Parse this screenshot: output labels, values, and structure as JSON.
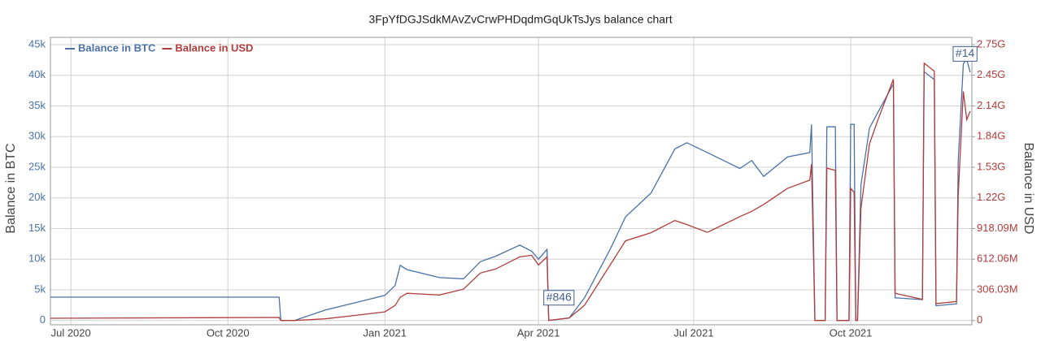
{
  "chart_data": {
    "type": "line",
    "title": "3FpYfDGJSdkMAvZvCrwPHDqdmGqUkTsJys balance chart",
    "ylabel": "Balance in BTC",
    "y2label": "Balance in USD",
    "grid": true,
    "legend": "upper left",
    "x": [
      "2020-06-19",
      "2020-10-31",
      "2020-11-01",
      "2020-11-09",
      "2020-11-27",
      "2020-12-16",
      "2021-01-01",
      "2021-01-07",
      "2021-01-10",
      "2021-01-14",
      "2021-02-02",
      "2021-02-16",
      "2021-02-26",
      "2021-03-07",
      "2021-03-21",
      "2021-03-28",
      "2021-04-01",
      "2021-04-06",
      "2021-04-07",
      "2021-04-19",
      "2021-04-28",
      "2021-05-13",
      "2021-05-22",
      "2021-06-06",
      "2021-06-20",
      "2021-06-27",
      "2021-07-09",
      "2021-07-28",
      "2021-08-04",
      "2021-08-11",
      "2021-08-25",
      "2021-09-07",
      "2021-09-08",
      "2021-09-10",
      "2021-09-16",
      "2021-09-17",
      "2021-09-22",
      "2021-09-23",
      "2021-09-30",
      "2021-10-01",
      "2021-10-03",
      "2021-10-04",
      "2021-10-05",
      "2021-10-07",
      "2021-10-12",
      "2021-10-17",
      "2021-10-26",
      "2021-10-27",
      "2021-11-12",
      "2021-11-13",
      "2021-11-19",
      "2021-11-20",
      "2021-12-02",
      "2021-12-03",
      "2021-12-06",
      "2021-12-08",
      "2021-12-10"
    ],
    "xlim": [
      "2020-06-19",
      "2021-12-11"
    ],
    "xticks": [
      {
        "value": "2020-07-01",
        "label": "Jul 2020"
      },
      {
        "value": "2020-10-01",
        "label": "Oct 2020"
      },
      {
        "value": "2021-01-01",
        "label": "Jan 2021"
      },
      {
        "value": "2021-04-01",
        "label": "Apr 2021"
      },
      {
        "value": "2021-07-01",
        "label": "Jul 2021"
      },
      {
        "value": "2021-10-01",
        "label": "Oct 2021"
      }
    ],
    "ylim": [
      -700,
      46200
    ],
    "yticks": [
      0,
      {
        "value": 5000,
        "label": "5k"
      },
      {
        "value": 10000,
        "label": "10k"
      },
      {
        "value": 15000,
        "label": "15k"
      },
      {
        "value": 20000,
        "label": "20k"
      },
      {
        "value": 25000,
        "label": "25k"
      },
      {
        "value": 30000,
        "label": "30k"
      },
      {
        "value": 35000,
        "label": "35k"
      },
      {
        "value": 40000,
        "label": "40k"
      },
      {
        "value": 45000,
        "label": "45k"
      }
    ],
    "y2lim": [
      -42844200,
      2827717200
    ],
    "y2ticks": [
      0,
      {
        "value": 306030000,
        "label": "306.03M"
      },
      {
        "value": 612060000,
        "label": "612.06M"
      },
      {
        "value": 918090000,
        "label": "918.09M"
      },
      {
        "value": 1224120000,
        "label": "1.22G"
      },
      {
        "value": 1530150000,
        "label": "1.53G"
      },
      {
        "value": 1836180000,
        "label": "1.84G"
      },
      {
        "value": 2142210000,
        "label": "2.14G"
      },
      {
        "value": 2448240000,
        "label": "2.45G"
      },
      {
        "value": 2754270000,
        "label": "2.75G"
      }
    ],
    "series": [
      {
        "name": "Balance in BTC",
        "color": "#4a72a8",
        "values": [
          3800,
          3800,
          0,
          0,
          1700,
          3000,
          4100,
          5700,
          9000,
          8300,
          7000,
          6800,
          9600,
          10500,
          12300,
          11300,
          10000,
          11600,
          0,
          400,
          3700,
          11600,
          16900,
          20800,
          28000,
          29000,
          27400,
          24800,
          26100,
          23500,
          26700,
          27400,
          32000,
          0,
          0,
          31600,
          31600,
          0,
          0,
          32000,
          32000,
          0,
          0,
          22100,
          31400,
          34000,
          38600,
          3700,
          3400,
          40600,
          39300,
          2400,
          2700,
          26000,
          41900,
          42600,
          40500
        ]
      },
      {
        "name": "Balance in USD",
        "color": "#b23b3b",
        "axis": "y2",
        "values": [
          22000000,
          30000000,
          0,
          0,
          16000000,
          54000000,
          86000000,
          150000000,
          231000000,
          272000000,
          255000000,
          312000000,
          474000000,
          514000000,
          635000000,
          651000000,
          554000000,
          635000000,
          0,
          25000000,
          151000000,
          554000000,
          796000000,
          877000000,
          998000000,
          958000000,
          880000000,
          1037000000,
          1090000000,
          1159000000,
          1320000000,
          1401000000,
          1562000000,
          0,
          0,
          1521000000,
          1500000000,
          0,
          0,
          1320000000,
          1280000000,
          0,
          0,
          1120000000,
          1764000000,
          2006000000,
          2409000000,
          272000000,
          210000000,
          2570000000,
          2490000000,
          168000000,
          190000000,
          1250000000,
          2288000000,
          2006000000,
          2090000000
        ]
      }
    ],
    "annotations": [
      {
        "text": "#846",
        "x": "2021-04-13",
        "y": 3700
      },
      {
        "text": "#14",
        "x": "2021-12-07",
        "y": 43500
      }
    ]
  }
}
